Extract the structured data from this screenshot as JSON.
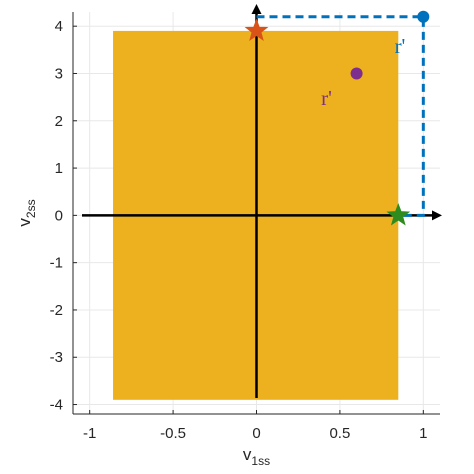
{
  "chart_data": {
    "type": "scatter",
    "title": "",
    "xlabel": {
      "base": "v",
      "sub": "1ss"
    },
    "ylabel": {
      "base": "v",
      "sub": "2ss"
    },
    "xlim": [
      -1.1,
      1.1
    ],
    "ylim": [
      -4.2,
      4.3
    ],
    "xticks": [
      -1,
      -0.5,
      0,
      0.5,
      1
    ],
    "yticks": [
      -4,
      -3,
      -2,
      -1,
      0,
      1,
      2,
      3,
      4
    ],
    "xtick_labels": [
      "-1",
      "-0.5",
      "0",
      "0.5",
      "1"
    ],
    "ytick_labels": [
      "-4",
      "-3",
      "-2",
      "-1",
      "0",
      "1",
      "2",
      "3",
      "4"
    ],
    "grid": true,
    "region": {
      "x": [
        -0.86,
        0.85
      ],
      "y": [
        -3.9,
        3.9
      ],
      "color": "#EDB120"
    },
    "series": [
      {
        "marker": "star",
        "x": 0,
        "y": 3.9,
        "color": "#D95319"
      },
      {
        "marker": "star",
        "x": 0.85,
        "y": 0,
        "color": "#2E8B1E"
      },
      {
        "marker": "circle",
        "x": 1.0,
        "y": 4.2,
        "color": "#0072BD"
      },
      {
        "marker": "circle",
        "x": 0.6,
        "y": 3.0,
        "color": "#7E2F8E"
      }
    ],
    "dashed_path": {
      "points": [
        [
          0,
          4.2
        ],
        [
          1.0,
          4.2
        ],
        [
          1.0,
          0
        ],
        [
          0.85,
          0
        ]
      ],
      "color": "#0072BD"
    },
    "annotations": [
      {
        "text": "r'",
        "x": 0.86,
        "y": 3.6,
        "color": "#0072BD"
      },
      {
        "text": "r'",
        "x": 0.42,
        "y": 2.5,
        "color": "#7E2F8E"
      }
    ],
    "axis_line_color": "#000000"
  }
}
